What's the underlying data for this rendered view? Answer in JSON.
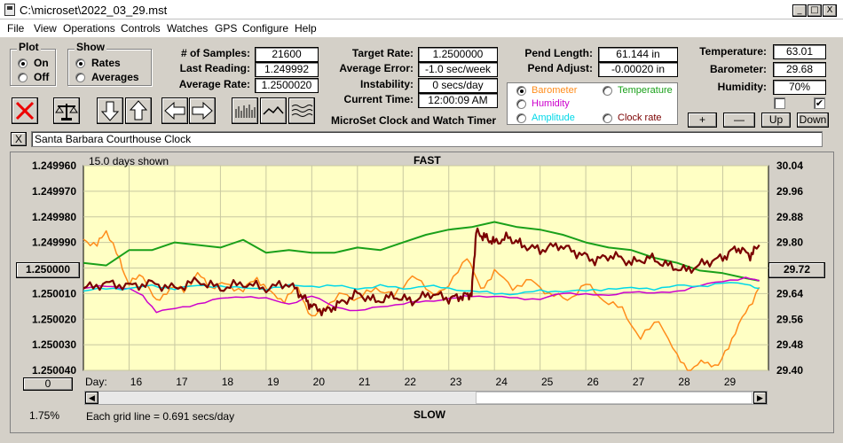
{
  "window": {
    "title": "C:\\microset\\2022_03_29.mst",
    "controls": [
      "_",
      "□",
      "X"
    ]
  },
  "menu": [
    "File",
    "View",
    "Operations",
    "Controls",
    "Watches",
    "GPS",
    "Configure",
    "Help"
  ],
  "plot_group": {
    "title": "Plot",
    "options": [
      {
        "label": "On",
        "selected": true
      },
      {
        "label": "Off",
        "selected": false
      }
    ]
  },
  "show_group": {
    "title": "Show",
    "options": [
      {
        "label": "Rates",
        "selected": true
      },
      {
        "label": "Averages",
        "selected": false
      }
    ]
  },
  "stats": {
    "samples_label": "# of Samples:",
    "samples": "21600",
    "last_reading_label": "Last Reading:",
    "last_reading": "1.249992",
    "average_rate_label": "Average Rate:",
    "average_rate": "1.2500020",
    "target_rate_label": "Target Rate:",
    "target_rate": "1.2500000",
    "average_error_label": "Average Error:",
    "average_error": "-1.0 sec/week",
    "instability_label": "Instability:",
    "instability": "0 secs/day",
    "current_time_label": "Current Time:",
    "current_time": "12:00:09 AM",
    "pend_length_label": "Pend Length:",
    "pend_length": "61.144 in",
    "pend_adjust_label": "Pend Adjust:",
    "pend_adjust": "-0.00020 in",
    "temperature_label": "Temperature:",
    "temperature": "63.01",
    "barometer_label": "Barometer:",
    "barometer": "29.68",
    "humidity_label": "Humidity:",
    "humidity": "70%"
  },
  "app_caption": "MicroSet Clock and Watch Timer",
  "series_selector": [
    {
      "label": "Barometer",
      "color": "#ff8c1a",
      "selected": true
    },
    {
      "label": "Temperature",
      "color": "#1aa01a",
      "selected": false
    },
    {
      "label": "Humidity",
      "color": "#cc00cc",
      "selected": false
    },
    {
      "label": "Amplitude",
      "color": "#00d8e8",
      "selected": false
    },
    {
      "label": "Clock rate",
      "color": "#7a0000",
      "selected": false
    }
  ],
  "scale_buttons": [
    "+",
    "—",
    "Up",
    "Down"
  ],
  "clock_name": "Santa Barbara Courthouse Clock",
  "close_x": "X",
  "chart": {
    "days_shown": "15.0 days shown",
    "top_label": "FAST",
    "bottom_label": "SLOW",
    "grid_note": "Each grid line = 0.691 secs/day",
    "day_label": "Day:",
    "left_button": "1.250000",
    "right_button": "29.72",
    "zero_button": "0",
    "percent": "1.75%"
  },
  "chart_data": {
    "type": "line",
    "x_label": "Day:",
    "x_ticks": [
      "16",
      "17",
      "18",
      "19",
      "20",
      "21",
      "22",
      "23",
      "24",
      "25",
      "26",
      "27",
      "28",
      "29"
    ],
    "xlim": [
      15.0,
      30.0
    ],
    "y_left": {
      "ticks": [
        "1.249960",
        "1.249970",
        "1.249980",
        "1.249990",
        "1.250000",
        "1.250010",
        "1.250020",
        "1.250030",
        "1.250040"
      ],
      "ylim": [
        1.24996,
        1.25004
      ],
      "inverted": true
    },
    "y_right": {
      "ticks": [
        "30.04",
        "29.96",
        "29.88",
        "29.80",
        "29.72",
        "29.64",
        "29.56",
        "29.48",
        "29.40"
      ],
      "ylim": [
        29.4,
        30.04
      ]
    },
    "series": [
      {
        "name": "Barometer",
        "color": "#ff8c1a",
        "axis": "right",
        "x": [
          15.0,
          15.3,
          15.5,
          15.8,
          16.0,
          16.3,
          16.6,
          16.9,
          17.2,
          17.5,
          17.8,
          18.1,
          18.5,
          18.8,
          19.1,
          19.4,
          19.7,
          20.0,
          20.3,
          20.7,
          21.0,
          21.4,
          21.8,
          22.2,
          22.6,
          23.0,
          23.4,
          23.7,
          24.0,
          24.4,
          24.8,
          25.2,
          25.6,
          26.0,
          26.4,
          26.8,
          27.2,
          27.6,
          28.0,
          28.3,
          28.6,
          28.9,
          29.2,
          29.5,
          29.8
        ],
        "y": [
          29.81,
          29.79,
          29.84,
          29.74,
          29.67,
          29.7,
          29.61,
          29.66,
          29.65,
          29.7,
          29.66,
          29.67,
          29.65,
          29.69,
          29.64,
          29.62,
          29.66,
          29.56,
          29.6,
          29.64,
          29.62,
          29.66,
          29.63,
          29.7,
          29.64,
          29.66,
          29.76,
          29.65,
          29.71,
          29.66,
          29.68,
          29.64,
          29.62,
          29.67,
          29.62,
          29.59,
          29.5,
          29.56,
          29.44,
          29.4,
          29.43,
          29.41,
          29.5,
          29.58,
          29.66
        ]
      },
      {
        "name": "Temperature",
        "color": "#1aa01a",
        "axis": "left",
        "x": [
          15.0,
          15.5,
          16.0,
          16.5,
          17.0,
          17.5,
          18.0,
          18.5,
          19.0,
          19.5,
          20.0,
          20.5,
          21.0,
          21.5,
          22.0,
          22.5,
          23.0,
          23.5,
          24.0,
          24.5,
          25.0,
          25.5,
          26.0,
          26.5,
          27.0,
          27.5,
          28.0,
          28.5,
          29.0,
          29.5,
          29.8
        ],
        "y": [
          1.249998,
          1.249999,
          1.249993,
          1.249993,
          1.24999,
          1.249991,
          1.249992,
          1.249989,
          1.249994,
          1.249993,
          1.249994,
          1.249994,
          1.249992,
          1.249993,
          1.24999,
          1.249987,
          1.249985,
          1.249984,
          1.249982,
          1.249984,
          1.249985,
          1.249987,
          1.24999,
          1.249992,
          1.249993,
          1.249996,
          1.249998,
          1.250001,
          1.250002,
          1.250004,
          1.250005
        ]
      },
      {
        "name": "Humidity",
        "color": "#cc00cc",
        "axis": "left",
        "x": [
          15.0,
          15.5,
          16.0,
          16.3,
          16.6,
          17.0,
          17.5,
          18.0,
          18.5,
          19.0,
          19.5,
          20.0,
          20.5,
          21.0,
          21.5,
          22.0,
          22.5,
          23.0,
          23.5,
          24.0,
          24.5,
          25.0,
          25.5,
          26.0,
          26.5,
          27.0,
          27.5,
          28.0,
          28.5,
          29.0,
          29.5,
          29.8
        ],
        "y": [
          1.250008,
          1.250007,
          1.250008,
          1.250011,
          1.250017,
          1.250016,
          1.250014,
          1.250012,
          1.250011,
          1.250012,
          1.250014,
          1.250011,
          1.250015,
          1.250017,
          1.250015,
          1.250014,
          1.250013,
          1.250012,
          1.250011,
          1.250011,
          1.250012,
          1.250012,
          1.25001,
          1.25001,
          1.250011,
          1.250009,
          1.25001,
          1.250009,
          1.250007,
          1.250005,
          1.250004,
          1.250005
        ]
      },
      {
        "name": "Amplitude",
        "color": "#00d8e8",
        "axis": "left",
        "x": [
          15.0,
          15.5,
          16.0,
          16.5,
          17.0,
          17.5,
          18.0,
          18.5,
          19.0,
          19.5,
          20.0,
          20.5,
          21.0,
          21.5,
          22.0,
          22.5,
          23.0,
          23.5,
          24.0,
          24.5,
          25.0,
          25.5,
          26.0,
          26.5,
          27.0,
          27.5,
          28.0,
          28.5,
          29.0,
          29.5,
          29.8
        ],
        "y": [
          1.250009,
          1.250008,
          1.250008,
          1.250007,
          1.250008,
          1.250007,
          1.250007,
          1.250008,
          1.250008,
          1.250007,
          1.250007,
          1.250007,
          1.250008,
          1.250007,
          1.250008,
          1.250007,
          1.250008,
          1.250009,
          1.25001,
          1.25001,
          1.250009,
          1.250009,
          1.250009,
          1.250008,
          1.250008,
          1.250008,
          1.250007,
          1.250007,
          1.250006,
          1.250006,
          1.250008
        ]
      },
      {
        "name": "Clock rate",
        "color": "#7a0000",
        "axis": "left",
        "x": [
          15.0,
          15.5,
          16.0,
          16.5,
          17.0,
          17.5,
          18.0,
          18.5,
          19.0,
          19.5,
          19.8,
          20.0,
          20.3,
          20.6,
          21.0,
          21.4,
          21.8,
          22.2,
          22.6,
          23.0,
          23.3,
          23.5,
          23.6,
          23.8,
          24.0,
          24.3,
          24.6,
          25.0,
          25.4,
          25.8,
          26.2,
          26.6,
          27.0,
          27.4,
          27.8,
          28.2,
          28.6,
          29.0,
          29.3,
          29.6,
          29.8
        ],
        "y": [
          1.250008,
          1.250006,
          1.250007,
          1.250006,
          1.250008,
          1.250005,
          1.250008,
          1.250006,
          1.250008,
          1.250006,
          1.250011,
          1.250015,
          1.250017,
          1.250014,
          1.25001,
          1.250013,
          1.250011,
          1.250013,
          1.25001,
          1.250012,
          1.250011,
          1.25001,
          1.249986,
          1.249988,
          1.24999,
          1.249988,
          1.249991,
          1.249993,
          1.249991,
          1.249994,
          1.249997,
          1.249995,
          1.249998,
          1.249996,
          1.249999,
          1.250001,
          1.249998,
          1.249996,
          1.249992,
          1.249995,
          1.249991
        ]
      }
    ]
  }
}
